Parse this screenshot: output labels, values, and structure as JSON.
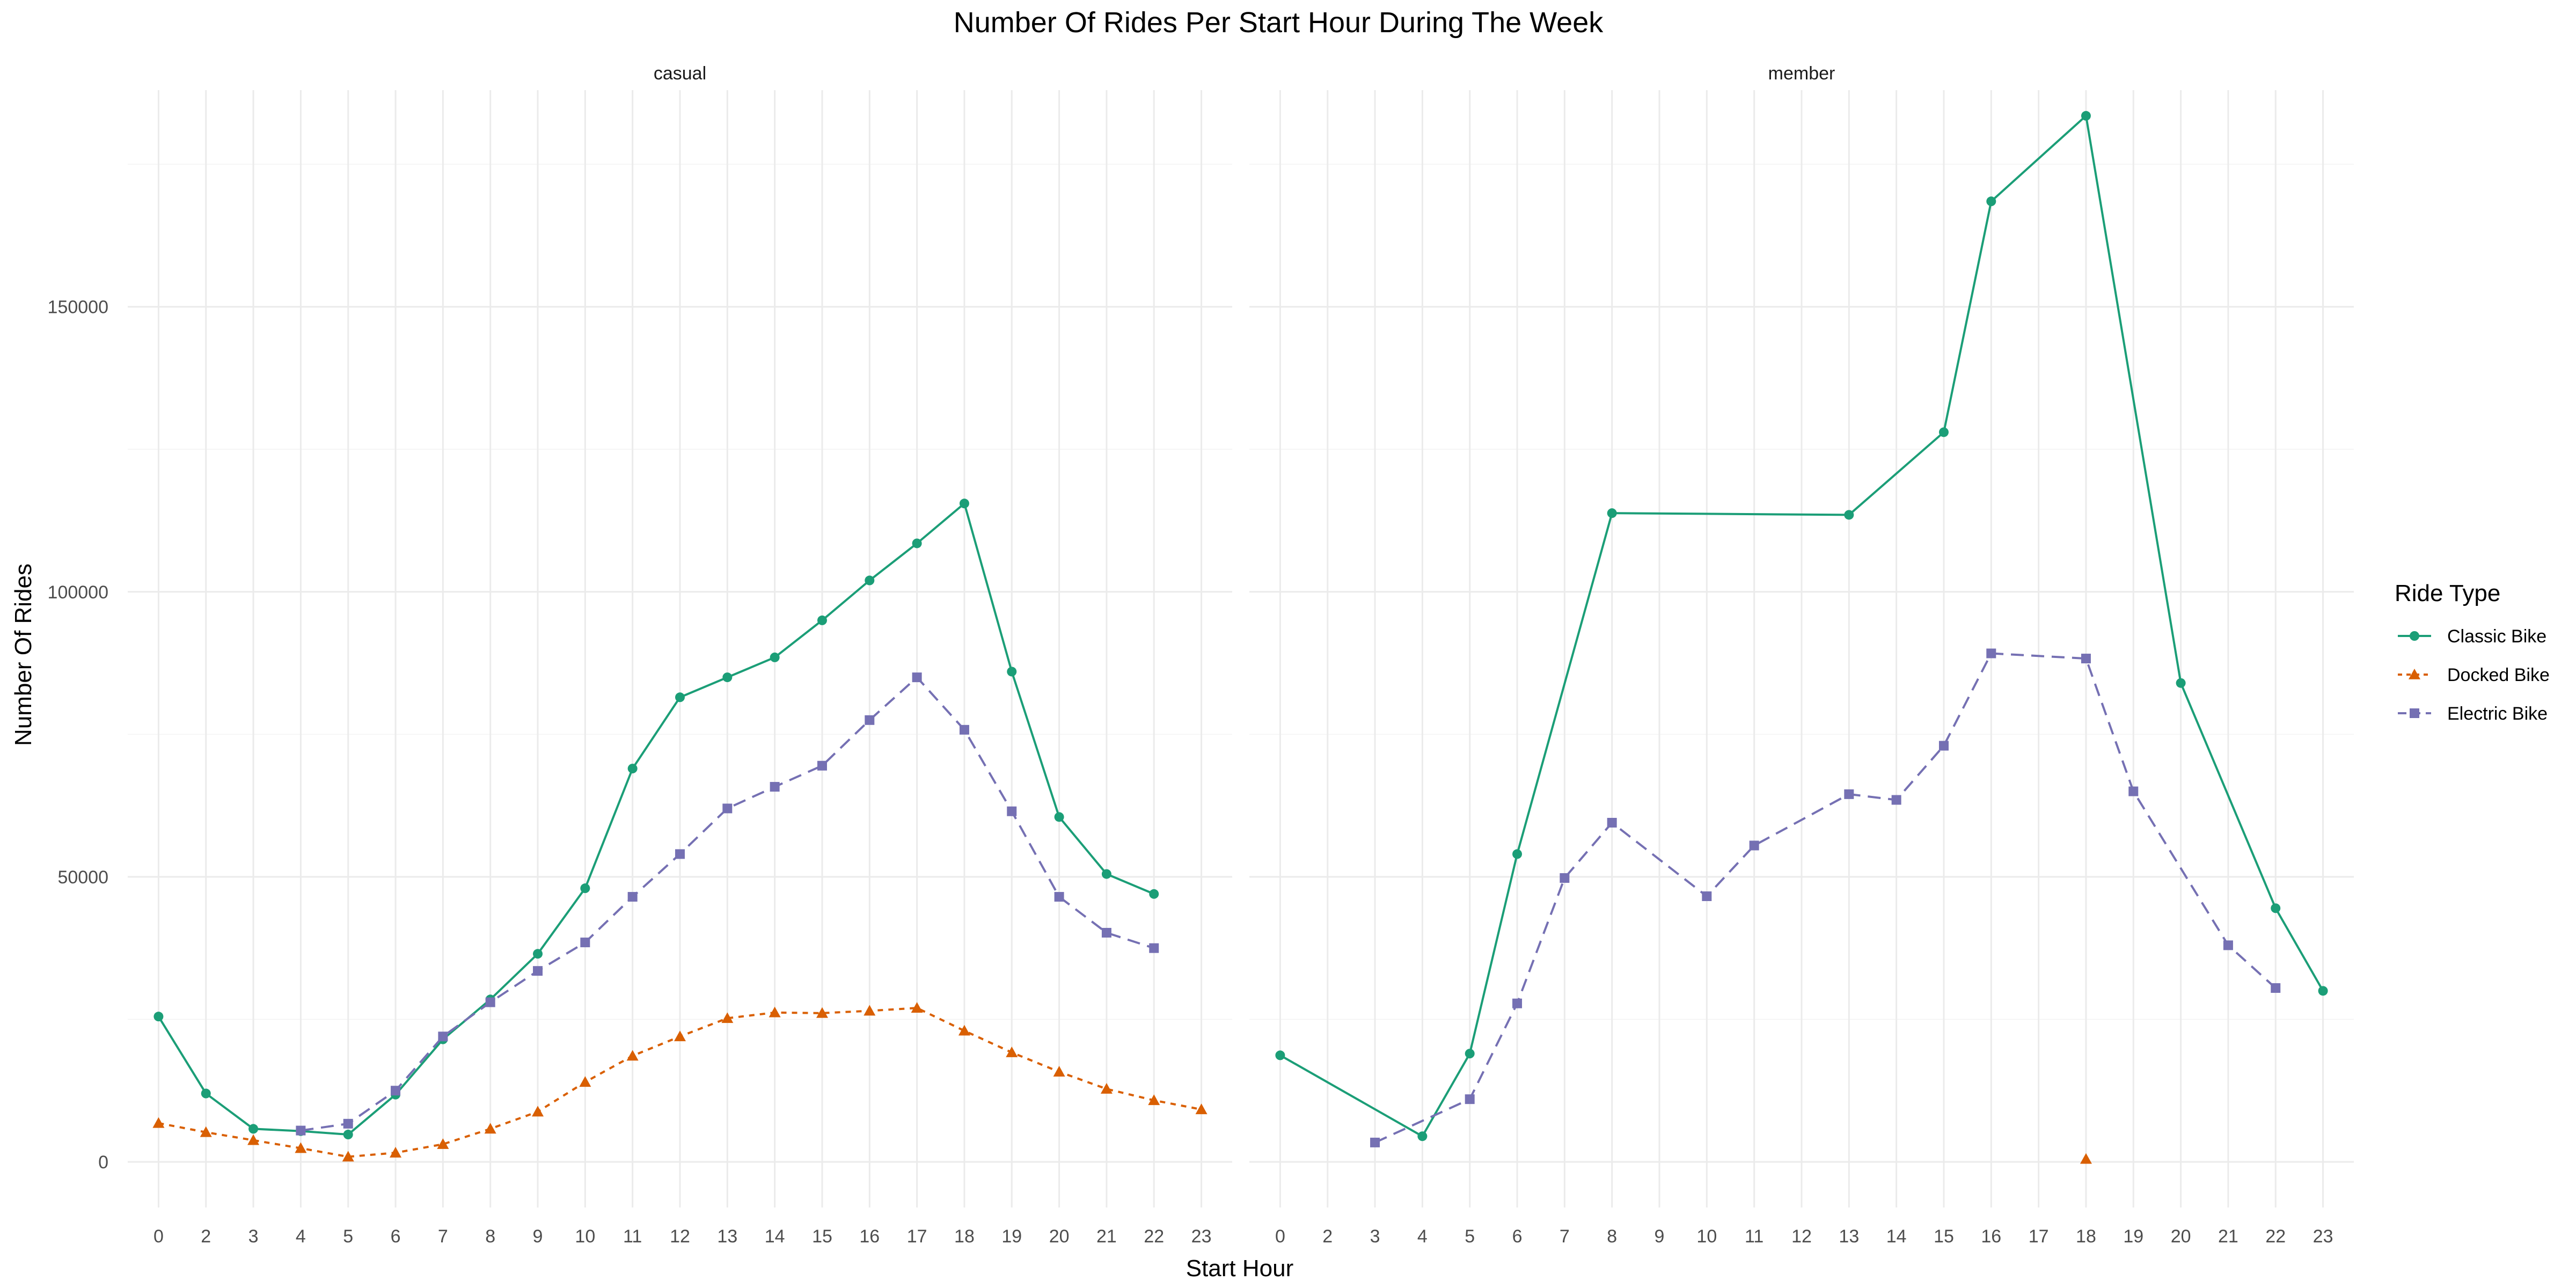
{
  "chart_data": {
    "type": "line",
    "title": "Number Of Rides Per Start Hour During The Week",
    "xlabel": "Start Hour",
    "ylabel": "Number Of Rides",
    "ylim": [
      -8000,
      188000
    ],
    "yticks": [
      0,
      50000,
      100000,
      150000
    ],
    "grid": true,
    "legend": {
      "title": "Ride Type",
      "position": "right",
      "entries": [
        "Classic Bike",
        "Docked Bike",
        "Electric Bike"
      ]
    },
    "colors": {
      "Classic Bike": "#1b9e77",
      "Docked Bike": "#d95f02",
      "Electric Bike": "#7570b3"
    },
    "panels": [
      {
        "label": "casual",
        "x_categories": [
          "0",
          "2",
          "3",
          "4",
          "5",
          "6",
          "7",
          "8",
          "9",
          "10",
          "11",
          "12",
          "13",
          "14",
          "15",
          "16",
          "17",
          "18",
          "19",
          "20",
          "21",
          "22",
          "23"
        ],
        "series": [
          {
            "name": "Classic Bike",
            "x": [
              "0",
              "2",
              "3",
              "4",
              "5",
              "6",
              "7",
              "8",
              "9",
              "10",
              "11",
              "12",
              "13",
              "14",
              "15",
              "16",
              "17",
              "18",
              "19",
              "20",
              "21",
              "22"
            ],
            "values": [
              25500,
              12000,
              5800,
              5400,
              4800,
              11800,
              21500,
              28500,
              36500,
              48000,
              69000,
              81500,
              85000,
              88500,
              95000,
              102000,
              108500,
              115500,
              86000,
              60500,
              50500,
              47000
            ]
          },
          {
            "name": "Docked Bike",
            "x": [
              "0",
              "2",
              "3",
              "4",
              "5",
              "6",
              "7",
              "8",
              "9",
              "10",
              "11",
              "12",
              "13",
              "14",
              "15",
              "16",
              "17",
              "18",
              "19",
              "20",
              "21",
              "22",
              "23"
            ],
            "values": [
              6800,
              5200,
              3800,
              2400,
              900,
              1600,
              3100,
              5800,
              8800,
              14000,
              18600,
              22000,
              25200,
              26200,
              26100,
              26500,
              27000,
              23000,
              19200,
              15800,
              12800,
              10800,
              9200
            ]
          },
          {
            "name": "Electric Bike",
            "x": [
              "4",
              "5",
              "6",
              "7",
              "8",
              "9",
              "10",
              "11",
              "12",
              "13",
              "14",
              "15",
              "16",
              "17",
              "18",
              "19",
              "20",
              "21",
              "22"
            ],
            "values": [
              5500,
              6700,
              12500,
              22000,
              28000,
              33500,
              38500,
              46500,
              54000,
              62000,
              65800,
              69500,
              77500,
              85000,
              75800,
              61500,
              46500,
              40200,
              37500
            ]
          }
        ]
      },
      {
        "label": "member",
        "x_categories": [
          "0",
          "2",
          "3",
          "4",
          "5",
          "6",
          "7",
          "8",
          "9",
          "10",
          "11",
          "12",
          "13",
          "14",
          "15",
          "16",
          "17",
          "18",
          "19",
          "20",
          "21",
          "22",
          "23"
        ],
        "series": [
          {
            "name": "Classic Bike",
            "x": [
              "0",
              "4",
              "5",
              "6",
              "8",
              "13",
              "15",
              "16",
              "18",
              "20",
              "22",
              "23"
            ],
            "values": [
              18700,
              4500,
              19000,
              54000,
              113800,
              113500,
              128000,
              168500,
              183500,
              84000,
              44500,
              30000
            ]
          },
          {
            "name": "Docked Bike",
            "x": [
              "18"
            ],
            "values": [
              500
            ]
          },
          {
            "name": "Electric Bike",
            "x": [
              "3",
              "5",
              "6",
              "7",
              "8",
              "10",
              "11",
              "13",
              "14",
              "15",
              "16",
              "18",
              "19",
              "21",
              "22"
            ],
            "values": [
              3400,
              11000,
              27800,
              49800,
              59500,
              46600,
              55500,
              64500,
              63500,
              73000,
              89200,
              88300,
              65000,
              38000,
              30500
            ]
          }
        ]
      }
    ]
  }
}
